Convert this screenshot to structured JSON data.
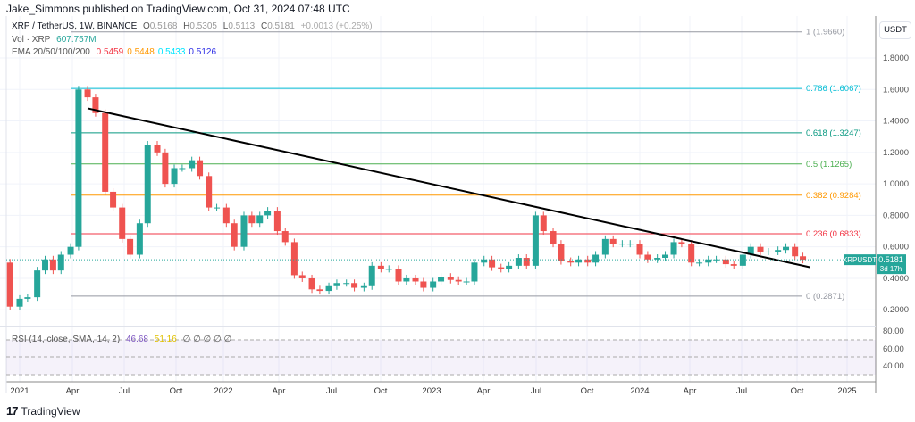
{
  "header": {
    "published": "Jake_Simmons published on TradingView.com, Oct 31, 2024 07:48 UTC"
  },
  "legend": {
    "symbol": "XRP / TetherUS, 1W, BINANCE",
    "ohlc": {
      "o_label": "O",
      "o": "0.5168",
      "h_label": "H",
      "h": "0.5305",
      "l_label": "L",
      "l": "0.5113",
      "c_label": "C",
      "c": "0.5181",
      "change": "+0.0013 (+0.25%)"
    },
    "vol_label": "Vol · XRP",
    "vol_value": "607.757M",
    "ema_label": "EMA 20/50/100/200",
    "ema_values": [
      {
        "v": "0.5459",
        "color": "#f23645"
      },
      {
        "v": "0.5448",
        "color": "#ff9800"
      },
      {
        "v": "0.5433",
        "color": "#00e5ff"
      },
      {
        "v": "0.5126",
        "color": "#2e2ee6"
      }
    ],
    "rsi_label": "RSI (14, close, SMA, 14, 2)",
    "rsi_value": "46.68",
    "rsi_sma": "51.16",
    "rsi_empty": "∅ ∅ ∅ ∅      ∅"
  },
  "price_axis": {
    "currency": "USDT",
    "ticks": [
      "1.8000",
      "1.6000",
      "1.4000",
      "1.2000",
      "1.0000",
      "0.8000",
      "0.6000",
      "0.4000",
      "0.2000"
    ],
    "rsi_ticks": [
      "80.00",
      "60.00",
      "40.00"
    ]
  },
  "price_tag": {
    "symbol": "XRPUSDT",
    "price": "0.5181",
    "countdown": "3d 17h",
    "color": "#26a69a"
  },
  "time_axis": [
    "2021",
    "Apr",
    "Jul",
    "Oct",
    "2022",
    "Apr",
    "Jul",
    "Oct",
    "2023",
    "Apr",
    "Jul",
    "Oct",
    "2024",
    "Apr",
    "Jul",
    "Oct",
    "2025"
  ],
  "footer": {
    "brand": "TradingView"
  },
  "chart_data": {
    "type": "candlestick",
    "ylim": [
      0.2,
      1.98
    ],
    "fib_levels": [
      {
        "label": "1 (1.9660)",
        "value": 1.966,
        "color": "#9598a1"
      },
      {
        "label": "0.786 (1.6067)",
        "value": 1.6067,
        "color": "#00bcd4"
      },
      {
        "label": "0.618 (1.3247)",
        "value": 1.3247,
        "color": "#089981"
      },
      {
        "label": "0.5 (1.1265)",
        "value": 1.1265,
        "color": "#4caf50"
      },
      {
        "label": "0.382 (0.9284)",
        "value": 0.9284,
        "color": "#ff9800"
      },
      {
        "label": "0.236 (0.6833)",
        "value": 0.6833,
        "color": "#f23645"
      },
      {
        "label": "0 (0.2871)",
        "value": 0.2871,
        "color": "#9598a1"
      }
    ],
    "trendline": {
      "from": {
        "date": "2021-05-01",
        "price": 1.48
      },
      "to": {
        "date": "2024-10-28",
        "price": 0.47
      },
      "color": "#000000"
    },
    "up_color": "#26a69a",
    "down_color": "#ef5350",
    "first_open": 0.5,
    "dates": [
      "2020-12-15",
      "2021-01-01",
      "2021-01-15",
      "2021-02-01",
      "2021-02-15",
      "2021-03-01",
      "2021-03-15",
      "2021-04-01",
      "2021-04-15",
      "2021-05-01",
      "2021-05-15",
      "2021-06-01",
      "2021-06-15",
      "2021-07-01",
      "2021-07-15",
      "2021-08-01",
      "2021-08-15",
      "2021-09-01",
      "2021-09-15",
      "2021-10-01",
      "2021-10-15",
      "2021-11-01",
      "2021-11-15",
      "2021-12-01",
      "2021-12-15",
      "2022-01-01",
      "2022-01-15",
      "2022-02-01",
      "2022-02-15",
      "2022-03-01",
      "2022-03-15",
      "2022-04-01",
      "2022-04-15",
      "2022-05-01",
      "2022-05-15",
      "2022-06-01",
      "2022-06-15",
      "2022-07-01",
      "2022-07-15",
      "2022-08-01",
      "2022-08-15",
      "2022-09-01",
      "2022-09-15",
      "2022-10-01",
      "2022-10-15",
      "2022-11-01",
      "2022-11-15",
      "2022-12-01",
      "2022-12-15",
      "2023-01-01",
      "2023-01-15",
      "2023-02-01",
      "2023-02-15",
      "2023-03-01",
      "2023-03-15",
      "2023-04-01",
      "2023-04-15",
      "2023-05-01",
      "2023-05-15",
      "2023-06-01",
      "2023-06-15",
      "2023-07-01",
      "2023-07-15",
      "2023-08-01",
      "2023-08-15",
      "2023-09-01",
      "2023-09-15",
      "2023-10-01",
      "2023-10-15",
      "2023-11-01",
      "2023-11-15",
      "2023-12-01",
      "2023-12-15",
      "2024-01-01",
      "2024-01-15",
      "2024-02-01",
      "2024-02-15",
      "2024-03-01",
      "2024-03-15",
      "2024-04-01",
      "2024-04-15",
      "2024-05-01",
      "2024-05-15",
      "2024-06-01",
      "2024-06-15",
      "2024-07-01",
      "2024-07-15",
      "2024-08-01",
      "2024-08-15",
      "2024-09-01",
      "2024-09-15",
      "2024-10-01",
      "2024-10-15"
    ],
    "close": [
      0.22,
      0.27,
      0.28,
      0.45,
      0.52,
      0.45,
      0.55,
      0.6,
      1.6,
      1.55,
      1.45,
      0.95,
      0.85,
      0.65,
      0.55,
      0.75,
      1.25,
      1.2,
      1.0,
      1.1,
      1.1,
      1.15,
      1.05,
      0.85,
      0.85,
      0.75,
      0.6,
      0.8,
      0.75,
      0.8,
      0.83,
      0.7,
      0.63,
      0.42,
      0.4,
      0.33,
      0.32,
      0.35,
      0.37,
      0.37,
      0.34,
      0.35,
      0.48,
      0.46,
      0.46,
      0.38,
      0.4,
      0.38,
      0.34,
      0.38,
      0.41,
      0.39,
      0.38,
      0.38,
      0.5,
      0.52,
      0.47,
      0.46,
      0.48,
      0.53,
      0.48,
      0.8,
      0.7,
      0.62,
      0.51,
      0.5,
      0.52,
      0.5,
      0.55,
      0.65,
      0.62,
      0.62,
      0.62,
      0.55,
      0.52,
      0.53,
      0.55,
      0.63,
      0.62,
      0.5,
      0.5,
      0.52,
      0.52,
      0.49,
      0.48,
      0.55,
      0.6,
      0.57,
      0.57,
      0.58,
      0.6,
      0.54,
      0.5181
    ]
  }
}
